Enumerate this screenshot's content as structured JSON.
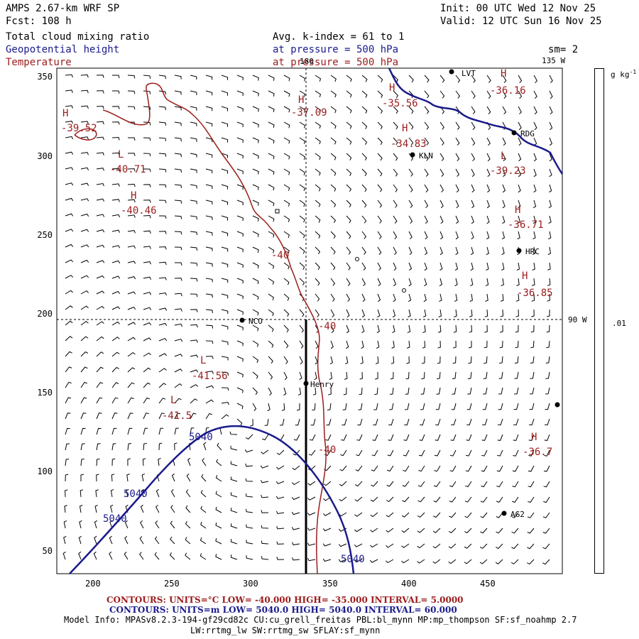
{
  "header": {
    "model_title": "AMPS 2.67-km WRF SP",
    "forecast": "Fcst:  108 h",
    "init": "Init: 00 UTC Wed 12 Nov 25",
    "valid": "Valid: 12 UTC Sun 16 Nov 25",
    "field1": "Total cloud mixing ratio",
    "field2": "Geopotential height",
    "field3": "Temperature",
    "avg": "Avg. k-index =  61 to   1",
    "pressure1": "at pressure =  500 hPa",
    "pressure2": "at pressure =  500 hPa",
    "smoothing": "sm= 2",
    "lon_135": "135 W",
    "lon_180": "180",
    "lon_90": "90 W"
  },
  "colors": {
    "temperature": "#9b1c1c",
    "height": "#1a1a8c",
    "text": "#000000"
  },
  "axes": {
    "x_ticks": [
      "200",
      "250",
      "300",
      "350",
      "400",
      "450"
    ],
    "y_ticks": [
      "350",
      "300",
      "250",
      "200",
      "150",
      "100",
      "50"
    ]
  },
  "colorbar": {
    "units": "g kg",
    "units_exp": "-1",
    "label": ".01"
  },
  "stations": [
    "LVT",
    "RDG",
    "KLN",
    "HRC",
    "NCO",
    "Henry",
    "AG2"
  ],
  "extrema": [
    {
      "type": "H",
      "value": "-37.09"
    },
    {
      "type": "H",
      "value": "-35.56"
    },
    {
      "type": "H",
      "value": "-36.16"
    },
    {
      "type": "H",
      "value": "-39.52"
    },
    {
      "type": "H",
      "value": "-34.83"
    },
    {
      "type": "L",
      "value": "-40.71"
    },
    {
      "type": "L",
      "value": "-39.23"
    },
    {
      "type": "H",
      "value": "-40.46"
    },
    {
      "type": "H",
      "value": "-36.71"
    },
    {
      "type": "H",
      "value": "-36.85"
    },
    {
      "type": "L",
      "value": "-41.56"
    },
    {
      "type": "L",
      "value": "-41.5"
    },
    {
      "type": "H",
      "value": "-36.7"
    }
  ],
  "contour_labels": {
    "temp": "-40",
    "height": "5040"
  },
  "footer": {
    "temp_contours": "CONTOURS:  UNITS=°C  LOW= -40.000     HIGH= -35.000     INTERVAL=   5.0000",
    "height_contours": "CONTOURS:  UNITS=m  LOW=  5040.0     HIGH=  5040.0     INTERVAL=   60.000",
    "model_info": "Model Info: MPASv8.2.3-194-gf29cd82c CU:cu_grell_freitas PBL:bl_mynn MP:mp_thompson SF:sf_noahmp 2.7",
    "model_info2": "LW:rrtmg_lw SW:rrtmg_sw SFLAY:sf_mynn"
  }
}
